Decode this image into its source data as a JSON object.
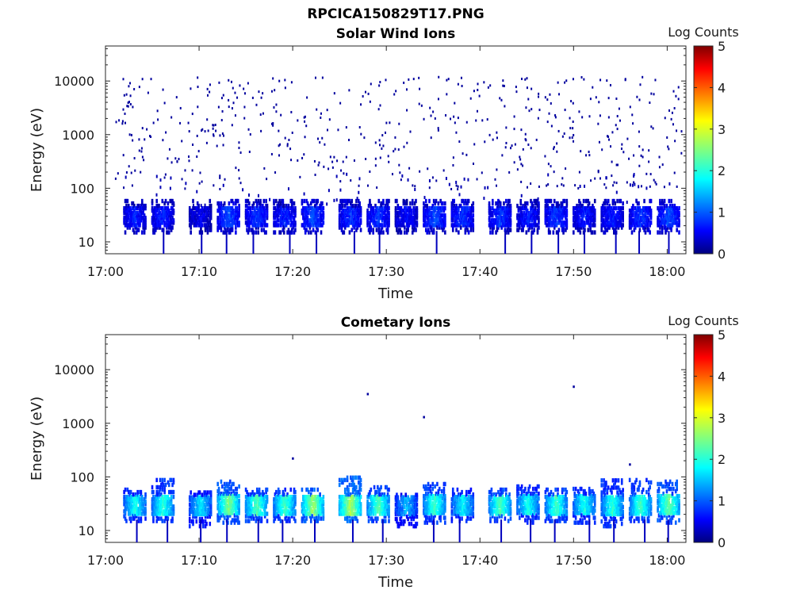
{
  "figure_title": "RPCICA150829T17.PNG",
  "chart_data": [
    {
      "type": "heatmap",
      "title": "Solar Wind Ions",
      "xlabel": "Time",
      "ylabel": "Energy (eV)",
      "xlim": [
        "17:00",
        "18:02"
      ],
      "x_ticks": [
        "17:00",
        "17:10",
        "17:20",
        "17:30",
        "17:40",
        "17:50",
        "18:00"
      ],
      "y_scale": "log",
      "ylim": [
        6,
        45000
      ],
      "y_ticks": [
        {
          "value": 10,
          "label": "10"
        },
        {
          "value": 100,
          "label": "100"
        },
        {
          "value": 1000,
          "label": "1000"
        },
        {
          "value": 10000,
          "label": "10000"
        }
      ],
      "colorbar": {
        "label": "Log Counts",
        "min": 0,
        "max": 5,
        "ticks": [
          "0",
          "1",
          "2",
          "3",
          "4",
          "5"
        ],
        "colormap": "jet"
      },
      "background_points": "sparse single counts (log counts ~0.2) scattered across 100 eV - 30000 eV",
      "bursts": [
        {
          "time": "17:03",
          "energy_range": [
            15,
            60
          ],
          "log_counts": 0.7
        },
        {
          "time": "17:06",
          "energy_range": [
            15,
            60
          ],
          "log_counts": 0.7
        },
        {
          "time": "17:10",
          "energy_range": [
            15,
            60
          ],
          "log_counts": 0.5
        },
        {
          "time": "17:13",
          "energy_range": [
            15,
            60
          ],
          "log_counts": 0.9
        },
        {
          "time": "17:16",
          "energy_range": [
            15,
            60
          ],
          "log_counts": 0.8
        },
        {
          "time": "17:19",
          "energy_range": [
            15,
            60
          ],
          "log_counts": 0.7
        },
        {
          "time": "17:22",
          "energy_range": [
            15,
            60
          ],
          "log_counts": 0.9
        },
        {
          "time": "17:26",
          "energy_range": [
            15,
            60
          ],
          "log_counts": 0.8
        },
        {
          "time": "17:29",
          "energy_range": [
            15,
            60
          ],
          "log_counts": 0.8
        },
        {
          "time": "17:32",
          "energy_range": [
            15,
            60
          ],
          "log_counts": 0.6
        },
        {
          "time": "17:35",
          "energy_range": [
            15,
            60
          ],
          "log_counts": 0.9
        },
        {
          "time": "17:38",
          "energy_range": [
            15,
            60
          ],
          "log_counts": 0.8
        },
        {
          "time": "17:42",
          "energy_range": [
            15,
            60
          ],
          "log_counts": 0.8
        },
        {
          "time": "17:45",
          "energy_range": [
            15,
            60
          ],
          "log_counts": 0.7
        },
        {
          "time": "17:48",
          "energy_range": [
            15,
            60
          ],
          "log_counts": 0.8
        },
        {
          "time": "17:51",
          "energy_range": [
            15,
            60
          ],
          "log_counts": 0.7
        },
        {
          "time": "17:54",
          "energy_range": [
            15,
            60
          ],
          "log_counts": 0.7
        },
        {
          "time": "17:57",
          "energy_range": [
            15,
            60
          ],
          "log_counts": 0.8
        },
        {
          "time": "18:00",
          "energy_range": [
            15,
            60
          ],
          "log_counts": 0.9
        }
      ]
    },
    {
      "type": "heatmap",
      "title": "Cometary Ions",
      "xlabel": "Time",
      "ylabel": "Energy (eV)",
      "xlim": [
        "17:00",
        "18:02"
      ],
      "x_ticks": [
        "17:00",
        "17:10",
        "17:20",
        "17:30",
        "17:40",
        "17:50",
        "18:00"
      ],
      "y_scale": "log",
      "ylim": [
        6,
        45000
      ],
      "y_ticks": [
        {
          "value": 10,
          "label": "10"
        },
        {
          "value": 100,
          "label": "100"
        },
        {
          "value": 1000,
          "label": "1000"
        },
        {
          "value": 10000,
          "label": "10000"
        }
      ],
      "colorbar": {
        "label": "Log Counts",
        "min": 0,
        "max": 5,
        "ticks": [
          "0",
          "1",
          "2",
          "3",
          "4",
          "5"
        ],
        "colormap": "jet"
      },
      "isolated_points": [
        {
          "time": "17:20",
          "energy": 220
        },
        {
          "time": "17:28",
          "energy": 3500
        },
        {
          "time": "17:34",
          "energy": 1300
        },
        {
          "time": "17:50",
          "energy": 4800
        },
        {
          "time": "17:56",
          "energy": 170
        }
      ],
      "bursts": [
        {
          "time": "17:03",
          "energy_range": [
            15,
            60
          ],
          "log_counts": 1.8
        },
        {
          "time": "17:06",
          "energy_range": [
            15,
            90
          ],
          "log_counts": 1.9
        },
        {
          "time": "17:10",
          "energy_range": [
            12,
            55
          ],
          "log_counts": 1.6
        },
        {
          "time": "17:13",
          "energy_range": [
            14,
            90
          ],
          "log_counts": 2.3
        },
        {
          "time": "17:16",
          "energy_range": [
            15,
            60
          ],
          "log_counts": 2.1
        },
        {
          "time": "17:19",
          "energy_range": [
            15,
            60
          ],
          "log_counts": 2.0
        },
        {
          "time": "17:22",
          "energy_range": [
            15,
            60
          ],
          "log_counts": 2.4
        },
        {
          "time": "17:26",
          "energy_range": [
            15,
            100
          ],
          "log_counts": 2.5
        },
        {
          "time": "17:29",
          "energy_range": [
            15,
            70
          ],
          "log_counts": 2.1
        },
        {
          "time": "17:32",
          "energy_range": [
            12,
            50
          ],
          "log_counts": 1.4
        },
        {
          "time": "17:35",
          "energy_range": [
            14,
            80
          ],
          "log_counts": 2.0
        },
        {
          "time": "17:38",
          "energy_range": [
            15,
            60
          ],
          "log_counts": 1.7
        },
        {
          "time": "17:42",
          "energy_range": [
            15,
            60
          ],
          "log_counts": 2.1
        },
        {
          "time": "17:45",
          "energy_range": [
            14,
            70
          ],
          "log_counts": 1.8
        },
        {
          "time": "17:48",
          "energy_range": [
            15,
            60
          ],
          "log_counts": 2.0
        },
        {
          "time": "17:51",
          "energy_range": [
            14,
            60
          ],
          "log_counts": 1.8
        },
        {
          "time": "17:54",
          "energy_range": [
            12,
            90
          ],
          "log_counts": 1.9
        },
        {
          "time": "17:57",
          "energy_range": [
            15,
            90
          ],
          "log_counts": 2.0
        },
        {
          "time": "18:00",
          "energy_range": [
            14,
            90
          ],
          "log_counts": 2.2
        }
      ]
    }
  ]
}
